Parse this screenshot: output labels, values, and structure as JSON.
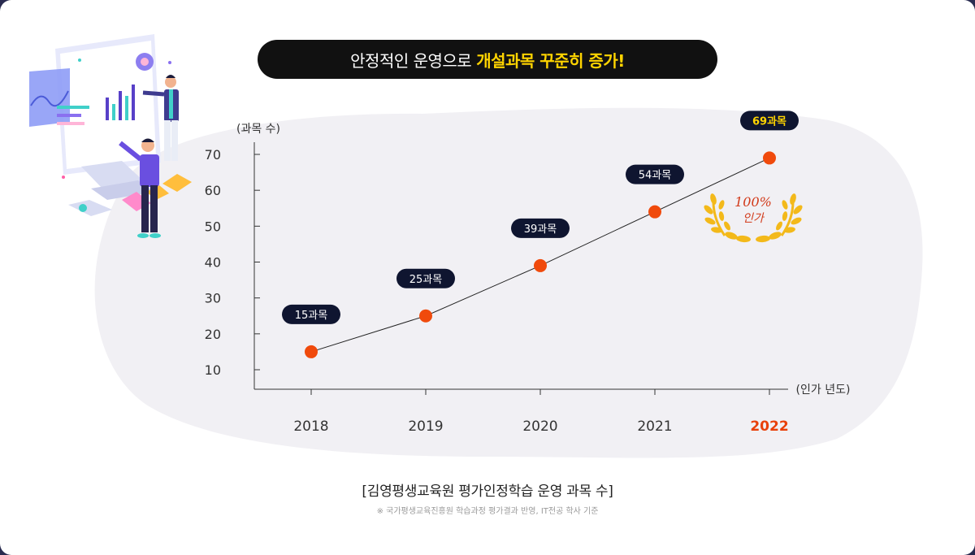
{
  "header": {
    "title_main": "안정적인 운영으로",
    "title_highlight": "개설과목 꾸준히 증가!"
  },
  "chart_data": {
    "type": "line",
    "ylabel": "(과목 수)",
    "xlabel": "(인가 년도)",
    "yticks": [
      10,
      20,
      30,
      40,
      50,
      60,
      70
    ],
    "ylim": [
      5,
      75
    ],
    "categories": [
      "2018",
      "2019",
      "2020",
      "2021",
      "2022"
    ],
    "values": [
      15,
      25,
      39,
      54,
      69
    ],
    "data_labels": [
      "15과목",
      "25과목",
      "39과목",
      "54과목",
      "69과목"
    ],
    "highlight_index": 4,
    "grid": false
  },
  "badge": {
    "line1": "100%",
    "line2": "인가"
  },
  "caption": "[김영평생교육원 평가인정학습 운영 과목 수]",
  "footnote": "※ 국가평생교육진흥원 학습과정 평가결과 반영, IT전공 학사 기준",
  "colors": {
    "page_bg": "#2a2c50",
    "pill_bg": "#111111",
    "highlight_yellow": "#ffd400",
    "point": "#f04a0c",
    "highlight_year": "#e8400a",
    "blob_bg": "#f1f0f4",
    "label_pill": "#0f1530"
  }
}
